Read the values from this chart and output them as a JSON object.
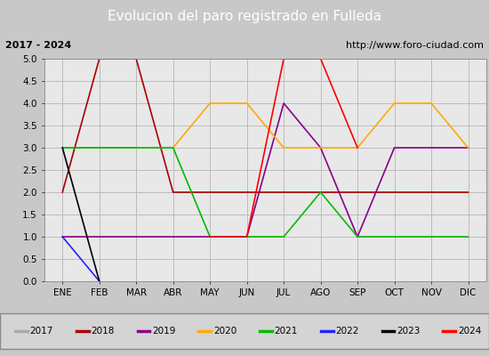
{
  "title": "Evolucion del paro registrado en Fulleda",
  "subtitle_left": "2017 - 2024",
  "subtitle_right": "http://www.foro-ciudad.com",
  "months": [
    "ENE",
    "FEB",
    "MAR",
    "ABR",
    "MAY",
    "JUN",
    "JUL",
    "AGO",
    "SEP",
    "OCT",
    "NOV",
    "DIC"
  ],
  "ylim": [
    0,
    5.0
  ],
  "yticks": [
    0.0,
    0.5,
    1.0,
    1.5,
    2.0,
    2.5,
    3.0,
    3.5,
    4.0,
    4.5,
    5.0
  ],
  "series": {
    "2017": {
      "color": "#aaaaaa",
      "data": [
        3,
        3,
        3,
        null,
        null,
        null,
        null,
        null,
        null,
        null,
        null,
        null
      ]
    },
    "2018": {
      "color": "#aa0000",
      "data": [
        2,
        5,
        5,
        2,
        2,
        2,
        2,
        2,
        2,
        2,
        2,
        2
      ]
    },
    "2019": {
      "color": "#880088",
      "data": [
        1,
        1,
        1,
        1,
        1,
        1,
        4,
        3,
        1,
        3,
        3,
        3
      ]
    },
    "2020": {
      "color": "#ffaa00",
      "data": [
        null,
        null,
        null,
        3,
        4,
        4,
        3,
        3,
        3,
        4,
        4,
        3
      ]
    },
    "2021": {
      "color": "#00bb00",
      "data": [
        3,
        3,
        3,
        3,
        1,
        1,
        1,
        2,
        1,
        1,
        1,
        1
      ]
    },
    "2022": {
      "color": "#2222ff",
      "data": [
        1,
        0,
        null,
        null,
        null,
        null,
        null,
        null,
        null,
        null,
        null,
        null
      ]
    },
    "2023": {
      "color": "#000000",
      "data": [
        3,
        0,
        null,
        null,
        null,
        null,
        null,
        null,
        null,
        null,
        null,
        null
      ]
    },
    "2024": {
      "color": "#ff0000",
      "data": [
        null,
        null,
        null,
        null,
        1,
        1,
        5,
        5,
        3,
        null,
        null,
        null
      ]
    }
  },
  "fig_bg_color": "#c8c8c8",
  "plot_bg_color": "#e8e8e8",
  "title_bg_color": "#5588cc",
  "title_fg_color": "#ffffff",
  "subtitle_bg_color": "#d4d4d4",
  "subtitle_fg_color": "#000000",
  "legend_bg_color": "#d4d4d4",
  "grid_color": "#bbbbbb",
  "grid_linewidth": 0.7
}
